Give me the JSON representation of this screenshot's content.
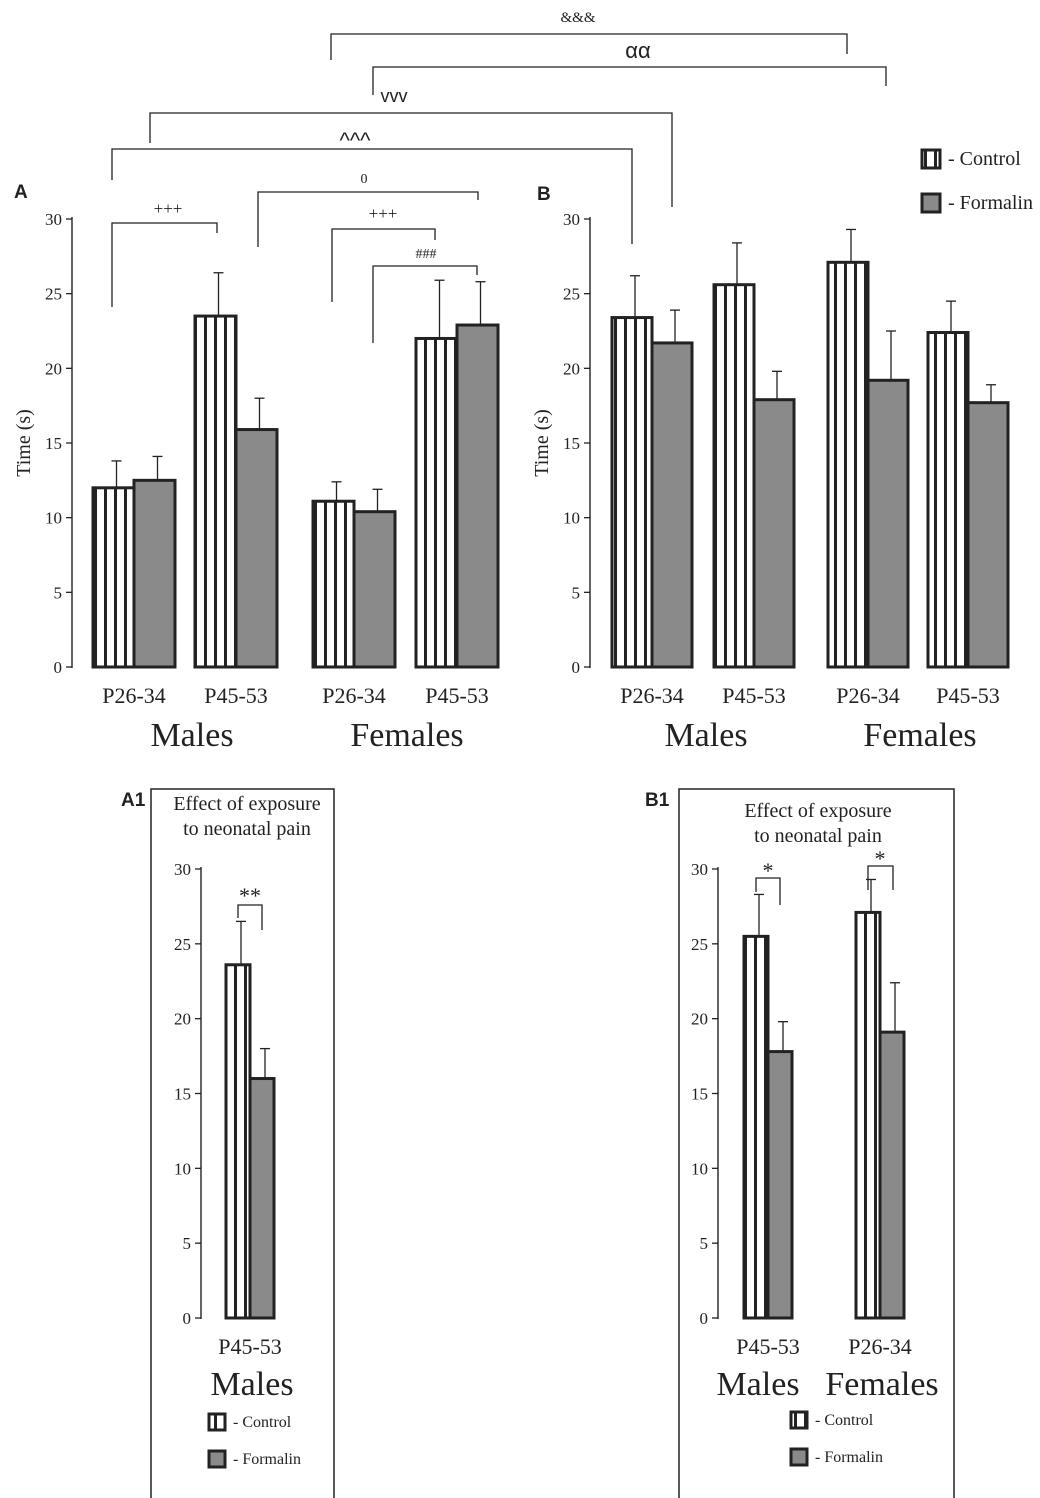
{
  "colors": {
    "control_fill": "#ffffff",
    "formalin_fill": "#8a8a8a",
    "stroke": "#222222"
  },
  "legend_labels": {
    "control": "- Control",
    "formalin": "- Formalin"
  },
  "significance": {
    "amp": "&&&",
    "alpha": "αα",
    "vvv": "vvv",
    "caret": "^^^",
    "zero": "0",
    "plus_a": "+++",
    "plus_b": "+++",
    "hash": "###",
    "a1_star": "**",
    "b1_star1": "*",
    "b1_star2": "*"
  },
  "chart_data": [
    {
      "panel": "A",
      "type": "bar",
      "ylabel": "Time (s)",
      "ylim": [
        0,
        30
      ],
      "yticks": [
        0,
        5,
        10,
        15,
        20,
        25,
        30
      ],
      "categories": [
        "P26-34",
        "P45-53",
        "P26-34",
        "P45-53"
      ],
      "groups": [
        "Males",
        "Females"
      ],
      "series": [
        {
          "name": "Control",
          "values": [
            12.0,
            23.5,
            11.1,
            22.0
          ],
          "errors": [
            1.8,
            2.9,
            1.3,
            3.9
          ]
        },
        {
          "name": "Formalin",
          "values": [
            12.5,
            15.9,
            10.4,
            22.9
          ],
          "errors": [
            1.6,
            2.1,
            1.5,
            2.9
          ]
        }
      ]
    },
    {
      "panel": "B",
      "type": "bar",
      "ylabel": "Time (s)",
      "ylim": [
        0,
        30
      ],
      "yticks": [
        0,
        5,
        10,
        15,
        20,
        25,
        30
      ],
      "categories": [
        "P26-34",
        "P45-53",
        "P26-34",
        "P45-53"
      ],
      "groups": [
        "Males",
        "Females"
      ],
      "series": [
        {
          "name": "Control",
          "values": [
            23.4,
            25.6,
            27.1,
            22.4
          ],
          "errors": [
            2.8,
            2.8,
            2.2,
            2.1
          ]
        },
        {
          "name": "Formalin",
          "values": [
            21.7,
            17.9,
            19.2,
            17.7
          ],
          "errors": [
            2.2,
            1.9,
            3.3,
            1.2
          ]
        }
      ]
    },
    {
      "panel": "A1",
      "type": "bar",
      "title": "Effect of exposure\nto neonatal pain",
      "ylim": [
        0,
        30
      ],
      "yticks": [
        0,
        5,
        10,
        15,
        20,
        25,
        30
      ],
      "categories": [
        "P45-53"
      ],
      "groups": [
        "Males"
      ],
      "series": [
        {
          "name": "Control",
          "values": [
            23.6
          ],
          "errors": [
            2.9
          ]
        },
        {
          "name": "Formalin",
          "values": [
            16.0
          ],
          "errors": [
            2.0
          ]
        }
      ]
    },
    {
      "panel": "B1",
      "type": "bar",
      "title": "Effect of exposure\nto neonatal pain",
      "ylim": [
        0,
        30
      ],
      "yticks": [
        0,
        5,
        10,
        15,
        20,
        25,
        30
      ],
      "categories": [
        "P45-53",
        "P26-34"
      ],
      "groups": [
        "Males",
        "Females"
      ],
      "series": [
        {
          "name": "Control",
          "values": [
            25.5,
            27.1
          ],
          "errors": [
            2.8,
            2.2
          ]
        },
        {
          "name": "Formalin",
          "values": [
            17.8,
            19.1
          ],
          "errors": [
            2.0,
            3.3
          ]
        }
      ]
    }
  ]
}
